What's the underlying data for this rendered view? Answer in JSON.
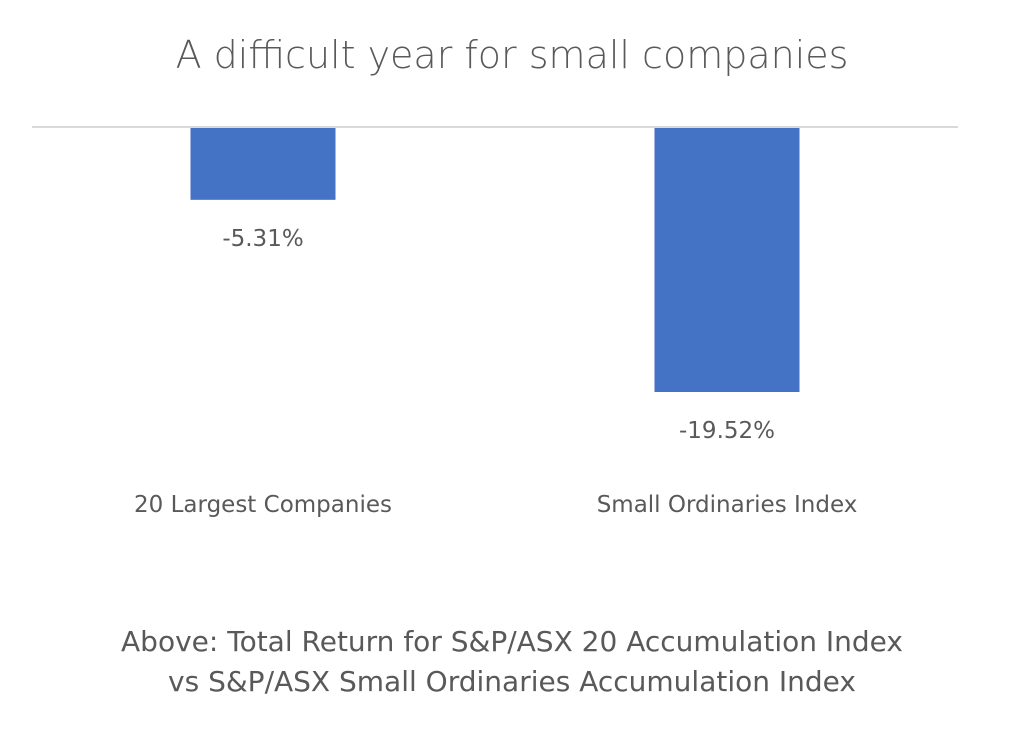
{
  "chart_data": {
    "type": "bar",
    "title": "A difficult year for small companies",
    "categories": [
      "20 Largest Companies",
      "Small Ordinaries Index"
    ],
    "series": [
      {
        "values": [
          -5.31,
          -19.52
        ],
        "data_labels": [
          "-5.31%",
          "-19.52%"
        ],
        "color": "#4472C4"
      }
    ],
    "xlabel": "",
    "ylabel": "",
    "ylim": [
      -19.52,
      0
    ],
    "grid": false,
    "legend": "none",
    "caption": "Above: Total Return for S&P/ASX 20 Accumulation Index vs S&P/ASX Small Ordinaries Accumulation Index"
  },
  "colors": {
    "bar": "#4472C4",
    "text": "#595959",
    "axis": "#D9D9D9"
  }
}
